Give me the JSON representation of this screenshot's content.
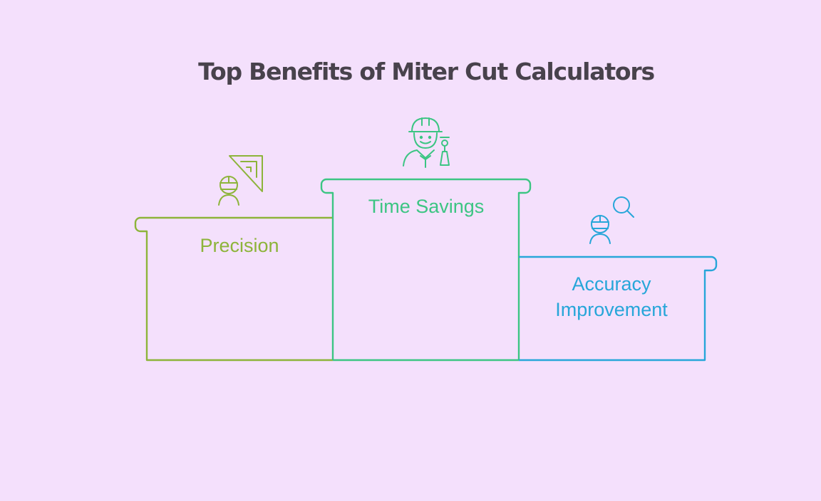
{
  "title": "Top Benefits of Miter Cut Calculators",
  "colors": {
    "background": "#f4e0fc",
    "title": "#48424c",
    "precision": "#8db43a",
    "time_savings": "#3cc583",
    "accuracy": "#27a6d9"
  },
  "podium": [
    {
      "rank": 2,
      "label_lines": [
        "Precision"
      ],
      "color": "#8db43a",
      "icon": "worker-with-set-square-icon"
    },
    {
      "rank": 1,
      "label_lines": [
        "Time Savings"
      ],
      "color": "#3cc583",
      "icon": "worker-with-trophy-icon"
    },
    {
      "rank": 3,
      "label_lines": [
        "Accuracy",
        "Improvement"
      ],
      "color": "#27a6d9",
      "icon": "worker-with-magnifier-icon"
    }
  ]
}
